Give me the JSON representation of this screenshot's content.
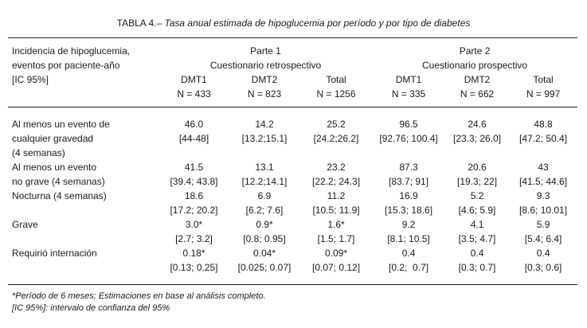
{
  "caption": {
    "lead": "TABLA 4.–",
    "rest": "Tasa anual estimada de hipoglucemia por período y por tipo de diabetes"
  },
  "header": {
    "row_label_lines": [
      "Incidencia de hipoglucemia,",
      "eventos por paciente-año",
      "[IC 95%]"
    ],
    "part1": {
      "title": "Parte 1",
      "subtitle": "Cuestionario retrospectivo"
    },
    "part2": {
      "title": "Parte 2",
      "subtitle": "Cuestionario prospectivo"
    },
    "columns": [
      {
        "name": "DMT1",
        "n": "N = 433"
      },
      {
        "name": "DMT2",
        "n": "N = 823"
      },
      {
        "name": "Total",
        "n": "N = 1256"
      },
      {
        "name": "DMT1",
        "n": "N = 335"
      },
      {
        "name": "DMT2",
        "n": "N = 662"
      },
      {
        "name": "Total",
        "n": "N = 997"
      }
    ]
  },
  "rows": [
    [
      "Al menos un evento de",
      "46.0",
      "14.2",
      "25.2",
      "96.5",
      "24.6",
      "48.8"
    ],
    [
      "cualquier gravedad",
      "[44-48]",
      "[13.2;15.1]",
      "[24.2;26.2]",
      "[92.76; 100.4]",
      "[23.3; 26.0]",
      "[47.2; 50.4]"
    ],
    [
      "(4 semanas)",
      "",
      "",
      "",
      "",
      "",
      ""
    ],
    [
      "Al menos un evento",
      "41.5",
      "13.1",
      "23.2",
      "87.3",
      "20.6",
      "43"
    ],
    [
      "no grave (4 semanas)",
      "[39.4; 43.8]",
      "[12.2;14.1]",
      "[22.2; 24.3]",
      "[83.7; 91]",
      "[19.3; 22]",
      "[41.5; 44.6]"
    ],
    [
      "Nocturna (4 semanas)",
      "18.6",
      "6.9",
      "11.2",
      "16.9",
      "5.2",
      "9.3"
    ],
    [
      "",
      "[17.2; 20.2]",
      "[6.2; 7.6]",
      "[10.5; 11.9]",
      "[15.3; 18.6]",
      "[4.6; 5.9]",
      "[8.6; 10.01]"
    ],
    [
      "Grave",
      "3.0*",
      "0.9*",
      "1.6*",
      "9.2",
      "4.1",
      "5.9"
    ],
    [
      "",
      "[2.7; 3.2]",
      "[0.8; 0.95]",
      "[1.5; 1.7]",
      "[8.1; 10.5]",
      "[3.5; 4.7]",
      "[5.4; 6.4]"
    ],
    [
      "Requirió internación",
      "0.18*",
      "0.04*",
      "0.09*",
      "0.4",
      "0.4",
      "0.4"
    ],
    [
      "",
      "[0.13; 0.25]",
      "[0.025; 0.07]",
      "[0.07; 0.12]",
      "[0.2;  0.7]",
      "[0.3; 0.7]",
      "[0.3; 0.6]"
    ]
  ],
  "footnotes": [
    "*Período de 6 meses; Estimaciones en base al análisis completo.",
    "[IC 95%]: intervalo de confianza del 95%"
  ]
}
